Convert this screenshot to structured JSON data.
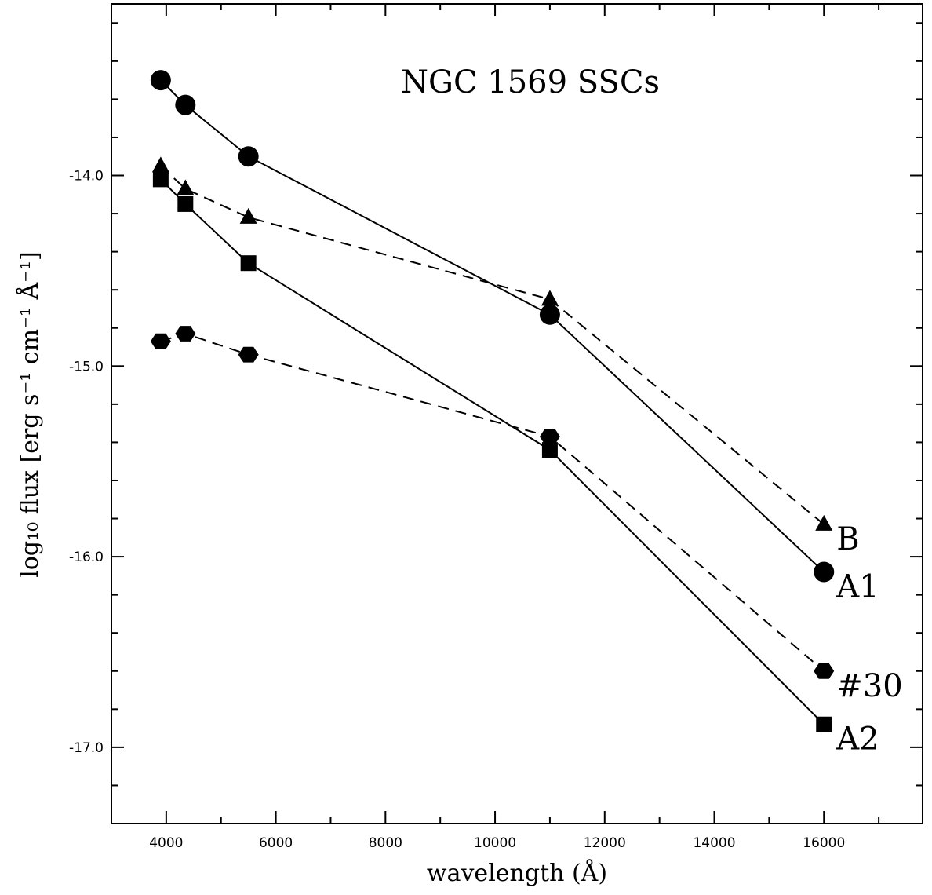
{
  "chart_data": {
    "type": "line",
    "title": "NGC 1569 SSCs",
    "xlabel": "wavelength (Å)",
    "ylabel": "log₁₀ flux [erg s⁻¹ cm⁻¹ Å⁻¹]",
    "xlim": [
      3000,
      17800
    ],
    "ylim": [
      -17.4,
      -13.1
    ],
    "xticks": [
      4000,
      6000,
      8000,
      10000,
      12000,
      14000,
      16000
    ],
    "xtick_labels": [
      "4000",
      "6000",
      "8000",
      "10000",
      "12000",
      "14000",
      "16000"
    ],
    "yticks": [
      -14.0,
      -15.0,
      -16.0,
      -17.0
    ],
    "ytick_labels": [
      "-14.0",
      "-15.0",
      "-16.0",
      "-17.0"
    ],
    "grid": false,
    "x": [
      3900,
      4350,
      5500,
      11000,
      16000
    ],
    "series": [
      {
        "name": "A1",
        "marker": "circle",
        "line": "solid",
        "values": [
          -13.5,
          -13.63,
          -13.9,
          -14.73,
          -16.08
        ]
      },
      {
        "name": "B",
        "marker": "triangle",
        "line": "dashed",
        "values": [
          -13.95,
          -14.07,
          -14.22,
          -14.65,
          -15.83
        ]
      },
      {
        "name": "A2",
        "marker": "square",
        "line": "solid",
        "values": [
          -14.02,
          -14.15,
          -14.46,
          -15.44,
          -16.88
        ]
      },
      {
        "name": "#30",
        "marker": "hexagon",
        "line": "dashed",
        "values": [
          -14.87,
          -14.83,
          -14.94,
          -15.37,
          -16.6
        ]
      }
    ]
  }
}
